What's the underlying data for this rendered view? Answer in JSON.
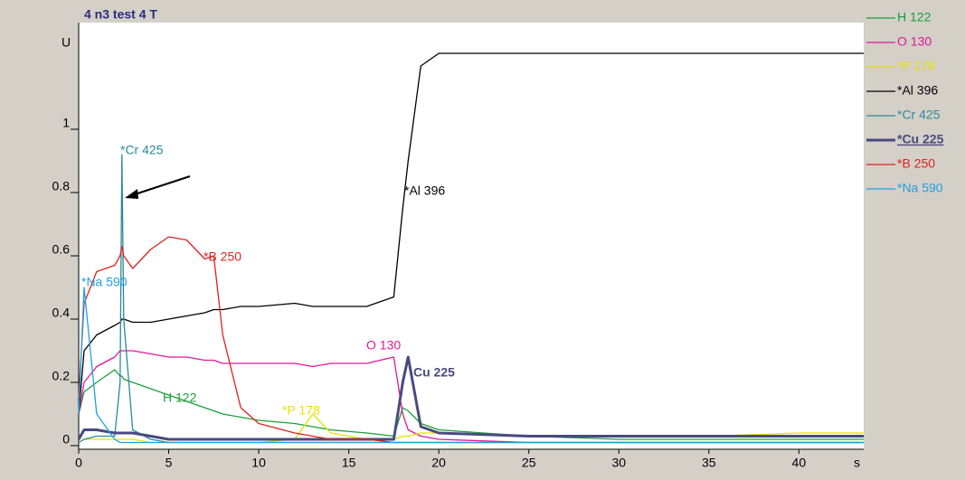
{
  "chart_data": {
    "type": "line",
    "title": "4 n3 test 4 T",
    "y_label": "U",
    "x_label": "s",
    "x": [
      0,
      0.3,
      1,
      2,
      2.3,
      2.4,
      2.5,
      3,
      4,
      5,
      6,
      7,
      7.5,
      8,
      9,
      10,
      12,
      13,
      14,
      16,
      17.5,
      18,
      18.3,
      19,
      20,
      25,
      30,
      35,
      40,
      43.6
    ],
    "xlim": [
      0,
      43.6
    ],
    "xticks": [
      0,
      5,
      10,
      15,
      20,
      25,
      30,
      35,
      40
    ],
    "ylim": [
      0,
      1.32
    ],
    "yticks": [
      0,
      0.2,
      0.4,
      0.6,
      0.8,
      1
    ],
    "grid": false,
    "legend": "right",
    "series": [
      {
        "name": "H 122",
        "color": "#1a9f3a",
        "values": [
          0.1,
          0.17,
          0.2,
          0.24,
          0.22,
          0.22,
          0.21,
          0.2,
          0.18,
          0.16,
          0.14,
          0.12,
          0.11,
          0.1,
          0.09,
          0.08,
          0.07,
          0.06,
          0.05,
          0.04,
          0.03,
          0.12,
          0.11,
          0.07,
          0.05,
          0.03,
          0.02,
          0.02,
          0.02,
          0.02
        ]
      },
      {
        "name": "O 130",
        "color": "#e0189a",
        "values": [
          0.1,
          0.2,
          0.25,
          0.28,
          0.3,
          0.3,
          0.3,
          0.3,
          0.29,
          0.28,
          0.28,
          0.27,
          0.27,
          0.26,
          0.26,
          0.26,
          0.26,
          0.25,
          0.26,
          0.26,
          0.28,
          0.1,
          0.05,
          0.03,
          0.02,
          0.01,
          0.01,
          0.01,
          0.01,
          0.01
        ]
      },
      {
        "name": "*P 178",
        "color": "#e8e000",
        "values": [
          0.01,
          0.02,
          0.02,
          0.02,
          0.02,
          0.02,
          0.02,
          0.02,
          0.01,
          0.01,
          0.01,
          0.01,
          0.01,
          0.01,
          0.01,
          0.01,
          0.02,
          0.1,
          0.04,
          0.02,
          0.02,
          0.03,
          0.03,
          0.04,
          0.04,
          0.03,
          0.03,
          0.03,
          0.04,
          0.04
        ]
      },
      {
        "name": "*Al 396",
        "color": "#000000",
        "values": [
          0.1,
          0.3,
          0.35,
          0.38,
          0.39,
          0.4,
          0.4,
          0.39,
          0.39,
          0.4,
          0.41,
          0.42,
          0.43,
          0.43,
          0.44,
          0.44,
          0.45,
          0.44,
          0.44,
          0.44,
          0.47,
          0.75,
          0.9,
          1.2,
          1.24,
          1.24,
          1.24,
          1.24,
          1.24,
          1.24
        ]
      },
      {
        "name": "*Cr 425",
        "color": "#2a8a9a",
        "values": [
          0.01,
          0.02,
          0.03,
          0.03,
          0.2,
          0.92,
          0.4,
          0.05,
          0.02,
          0.01,
          0.01,
          0.01,
          0.01,
          0.01,
          0.01,
          0.01,
          0.01,
          0.01,
          0.01,
          0.01,
          0.01,
          0.01,
          0.01,
          0.01,
          0.01,
          0.01,
          0.01,
          0.01,
          0.01,
          0.01
        ]
      },
      {
        "name": "*Cu 225",
        "color": "#4a4a80",
        "highlight": true,
        "values": [
          0.02,
          0.05,
          0.05,
          0.04,
          0.04,
          0.04,
          0.04,
          0.04,
          0.03,
          0.02,
          0.02,
          0.02,
          0.02,
          0.02,
          0.02,
          0.02,
          0.02,
          0.02,
          0.02,
          0.02,
          0.02,
          0.2,
          0.28,
          0.06,
          0.04,
          0.03,
          0.03,
          0.03,
          0.03,
          0.03
        ]
      },
      {
        "name": "*B 250",
        "color": "#e02020",
        "values": [
          0.15,
          0.45,
          0.55,
          0.57,
          0.6,
          0.63,
          0.6,
          0.56,
          0.62,
          0.66,
          0.65,
          0.59,
          0.6,
          0.35,
          0.12,
          0.07,
          0.04,
          0.03,
          0.02,
          0.02,
          0.01,
          0.01,
          0.01,
          0.01,
          0.01,
          0.01,
          0.01,
          0.01,
          0.01,
          0.01
        ]
      },
      {
        "name": "*Na 590",
        "color": "#20a0e0",
        "values": [
          0.1,
          0.5,
          0.1,
          0.02,
          0.01,
          0.01,
          0.01,
          0.01,
          0.01,
          0.01,
          0.01,
          0.01,
          0.01,
          0.01,
          0.01,
          0.01,
          0.01,
          0.01,
          0.01,
          0.01,
          0.01,
          0.01,
          0.01,
          0.01,
          0.01,
          0.01,
          0.01,
          0.01,
          0.01,
          0.01
        ]
      }
    ],
    "annotations": [
      {
        "text": "*Cr 425",
        "color": "#2a8a9a"
      },
      {
        "text": "*Al 396",
        "color": "#000000"
      },
      {
        "text": "*B 250",
        "color": "#e02020"
      },
      {
        "text": "*Na 590",
        "color": "#20a0e0"
      },
      {
        "text": "O 130",
        "color": "#e0189a"
      },
      {
        "text": "Cu 225",
        "color": "#4a4a80"
      },
      {
        "text": "H 122",
        "color": "#1a9f3a"
      },
      {
        "text": "*P 178",
        "color": "#e8e000"
      }
    ]
  }
}
